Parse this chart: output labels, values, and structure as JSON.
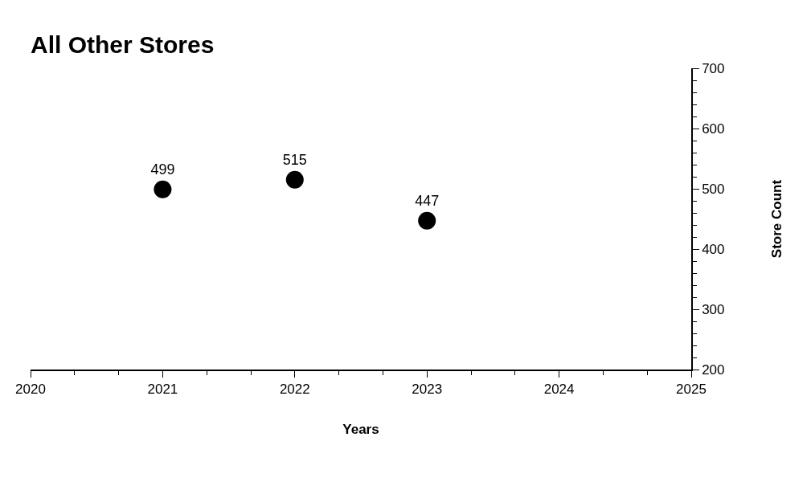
{
  "chart_data": {
    "type": "scatter",
    "title": "All Other Stores",
    "xlabel": "Years",
    "ylabel": "Store Count",
    "x": [
      2021,
      2022,
      2023
    ],
    "values": [
      499,
      515,
      447
    ],
    "color": "#000000",
    "marker": "circle",
    "data_labels": true,
    "xlim": [
      2020,
      2025
    ],
    "xticks": [
      2020,
      2021,
      2022,
      2023,
      2024,
      2025
    ],
    "ylim": [
      200,
      700
    ],
    "yticks": [
      200,
      300,
      400,
      500,
      600,
      700
    ]
  }
}
